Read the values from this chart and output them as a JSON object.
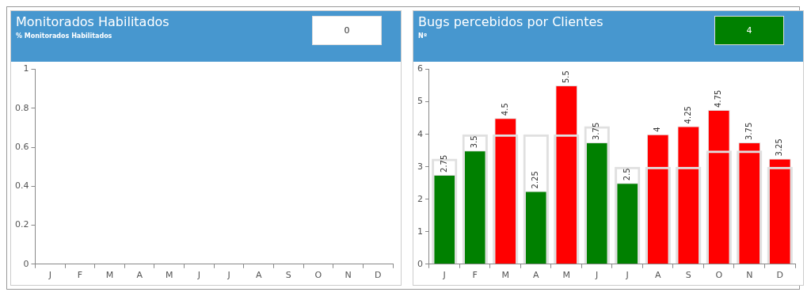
{
  "chart_data": [
    {
      "type": "bar",
      "title": "Monitorados Habilitados",
      "subtitle": "% Monitorados Habilitados",
      "annotations": [
        "0"
      ],
      "categories": [
        "J",
        "F",
        "M",
        "A",
        "M",
        "J",
        "J",
        "A",
        "S",
        "O",
        "N",
        "D"
      ],
      "values": [
        null,
        null,
        null,
        null,
        null,
        null,
        null,
        null,
        null,
        null,
        null,
        null
      ],
      "ylim": [
        0,
        1
      ],
      "yticks": [
        0,
        0.2,
        0.4,
        0.6,
        0.8,
        1
      ],
      "grid": false,
      "legend": false
    },
    {
      "type": "bar",
      "title": "Bugs percebidos por Clientes",
      "subtitle": "Nº",
      "annotations": [
        "4"
      ],
      "categories": [
        "J",
        "F",
        "M",
        "A",
        "M",
        "J",
        "J",
        "A",
        "S",
        "O",
        "N",
        "D"
      ],
      "series": [
        {
          "color": "#e0e0e0",
          "values": [
            3.25,
            4,
            4,
            4,
            4,
            4.25,
            3,
            3,
            3,
            3.5,
            3.5,
            3
          ]
        },
        {
          "colors": [
            "#008000",
            "#008000",
            "#ff0000",
            "#008000",
            "#ff0000",
            "#008000",
            "#008000",
            "#ff0000",
            "#ff0000",
            "#ff0000",
            "#ff0000",
            "#ff0000"
          ],
          "values": [
            2.75,
            3.5,
            4.5,
            2.25,
            5.5,
            3.75,
            2.5,
            4,
            4.25,
            4.75,
            3.75,
            3.25
          ],
          "value_labels": [
            "2.75",
            "3.5",
            "4.5",
            "2.25",
            "5.5",
            "3.75",
            "2.5",
            "4",
            "4.25",
            "4.75",
            "3.75",
            "3.25"
          ]
        }
      ],
      "ylim": [
        0,
        6
      ],
      "yticks": [
        0,
        1,
        2,
        3,
        4,
        5,
        6
      ],
      "grid": false,
      "legend": false
    }
  ]
}
